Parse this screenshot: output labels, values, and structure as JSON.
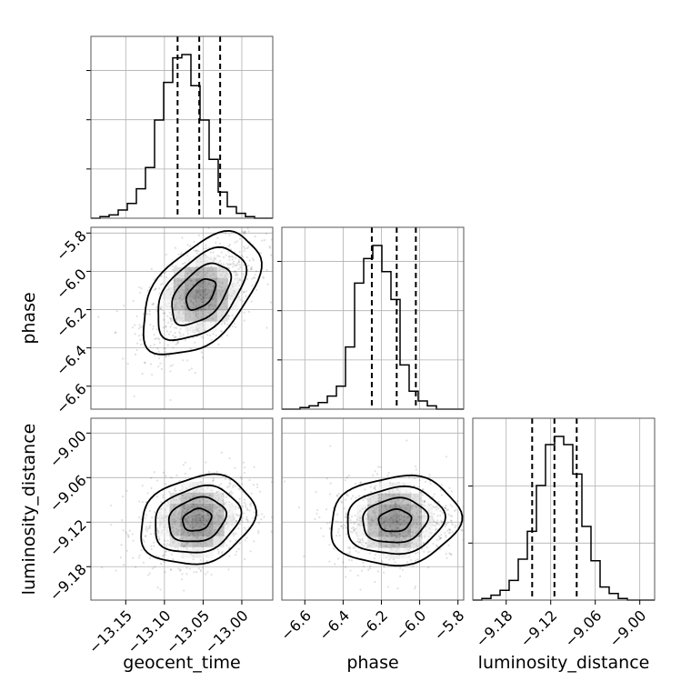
{
  "chart_data": {
    "type": "corner",
    "parameters": [
      "geocent_time",
      "phase",
      "luminosity_distance"
    ],
    "axis_labels": {
      "geocent_time": "geocent_time",
      "phase": "phase",
      "luminosity_distance": "luminosity_distance"
    },
    "ranges": {
      "geocent_time": [
        -13.195,
        -12.96
      ],
      "phase": [
        -6.72,
        -5.77
      ],
      "luminosity_distance": [
        -9.225,
        -8.98
      ]
    },
    "ticks": {
      "geocent_time": [
        -13.15,
        -13.1,
        -13.05,
        -13.0
      ],
      "phase": [
        -6.6,
        -6.4,
        -6.2,
        -6.0,
        -5.8
      ],
      "luminosity_distance": [
        -9.18,
        -9.12,
        -9.06,
        -9.0
      ]
    },
    "tick_labels": {
      "geocent_time": [
        "−13.15",
        "−13.10",
        "−13.05",
        "−13.00"
      ],
      "phase": [
        "−6.6",
        "−6.4",
        "−6.2",
        "−6.0",
        "−5.8"
      ],
      "luminosity_distance": [
        "−9.18",
        "−9.12",
        "−9.06",
        "−9.00"
      ]
    },
    "diag_ticks": {
      "geocent_time": [
        0.285,
        0.57,
        0.855
      ],
      "phase": [
        0.285,
        0.57,
        0.855
      ],
      "luminosity_distance": [
        0.33,
        0.66
      ]
    },
    "quantiles": {
      "geocent_time": [
        -13.083,
        -13.055,
        -13.028
      ],
      "phase": [
        -6.25,
        -6.12,
        -6.02
      ],
      "luminosity_distance": [
        -9.145,
        -9.115,
        -9.085
      ]
    },
    "histograms": {
      "geocent_time": [
        0.0,
        0.01,
        0.02,
        0.05,
        0.09,
        0.18,
        0.31,
        0.6,
        0.83,
        0.98,
        1.0,
        0.81,
        0.6,
        0.36,
        0.16,
        0.07,
        0.03,
        0.01,
        0.0,
        0.0
      ],
      "phase": [
        0.0,
        0.0,
        0.01,
        0.02,
        0.04,
        0.08,
        0.14,
        0.38,
        0.77,
        0.92,
        1.0,
        0.84,
        0.67,
        0.27,
        0.11,
        0.05,
        0.02,
        0.0,
        0.0,
        0.0
      ],
      "luminosity_distance": [
        0.0,
        0.01,
        0.03,
        0.06,
        0.12,
        0.25,
        0.42,
        0.7,
        0.95,
        1.0,
        0.95,
        0.77,
        0.45,
        0.24,
        0.08,
        0.04,
        0.01,
        0.0,
        0.0,
        0.0
      ]
    },
    "pairs": [
      {
        "x": "geocent_time",
        "y": "phase",
        "mean": [
          -13.053,
          -6.12
        ],
        "sd": [
          0.038,
          0.16
        ],
        "corr": 0.5
      },
      {
        "x": "geocent_time",
        "y": "luminosity_distance",
        "mean": [
          -13.058,
          -9.117
        ],
        "sd": [
          0.037,
          0.03
        ],
        "corr": 0.2
      },
      {
        "x": "phase",
        "y": "luminosity_distance",
        "mean": [
          -6.13,
          -9.118
        ],
        "sd": [
          0.17,
          0.03
        ],
        "corr": 0.1
      }
    ],
    "contour_levels_sigma": [
      0.5,
      1.0,
      1.5,
      2.0
    ],
    "grid": true
  }
}
